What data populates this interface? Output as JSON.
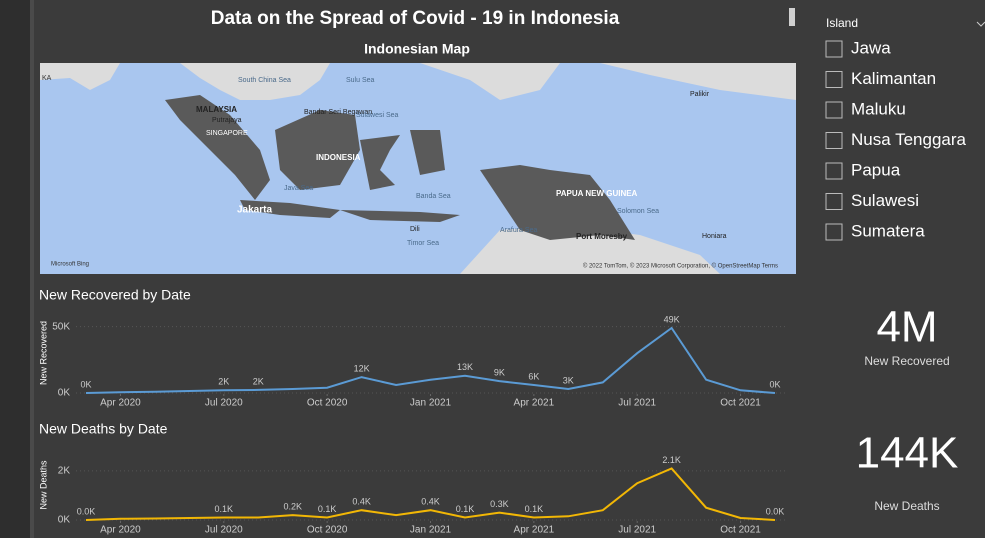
{
  "header": {
    "title": "Data on the Spread of Covid - 19 in Indonesia"
  },
  "map": {
    "title": "Indonesian Map",
    "labels": [
      "KA",
      "South China Sea",
      "Sulu Sea",
      "MALAYSIA",
      "Putrajaya",
      "SINGAPORE",
      "Bandar Seri Begawan",
      "Sulawesi Sea",
      "INDONESIA",
      "Java Sea",
      "Jakarta",
      "Banda Sea",
      "Dili",
      "Timor Sea",
      "Arafura Sea",
      "PAPUA NEW GUINEA",
      "Port Moresby",
      "Solomon Sea",
      "Palikir",
      "Honiara"
    ],
    "attribution": "Microsoft Bing",
    "copyright": "© 2022 TomTom, © 2023 Microsoft Corporation, © OpenStreetMap  Terms"
  },
  "slicer": {
    "title": "Island",
    "items": [
      "Jawa",
      "Kalimantan",
      "Maluku",
      "Nusa Tenggara",
      "Papua",
      "Sulawesi",
      "Sumatera"
    ]
  },
  "cards": [
    {
      "value": "4M",
      "label": "New Recovered"
    },
    {
      "value": "144K",
      "label": "New Deaths"
    }
  ],
  "chart_data": [
    {
      "type": "line",
      "title": "New Recovered by Date",
      "y_label": "New Recovered",
      "x": [
        "2020-03",
        "2020-04",
        "2020-05",
        "2020-06",
        "2020-07",
        "2020-08",
        "2020-09",
        "2020-10",
        "2020-11",
        "2020-12",
        "2021-01",
        "2021-02",
        "2021-03",
        "2021-04",
        "2021-05",
        "2021-06",
        "2021-07",
        "2021-08",
        "2021-09",
        "2021-10",
        "2021-11"
      ],
      "xlim": [
        "2020-03",
        "2021-11"
      ],
      "xticks": [
        {
          "value": "2020-04",
          "label": "Apr 2020"
        },
        {
          "value": "2020-07",
          "label": "Jul 2020"
        },
        {
          "value": "2020-10",
          "label": "Oct 2020"
        },
        {
          "value": "2021-01",
          "label": "Jan 2021"
        },
        {
          "value": "2021-04",
          "label": "Apr 2021"
        },
        {
          "value": "2021-07",
          "label": "Jul 2021"
        },
        {
          "value": "2021-10",
          "label": "Oct 2021"
        }
      ],
      "ylim": [
        0,
        55000
      ],
      "yticks": [
        {
          "value": 0,
          "label": "0K"
        },
        {
          "value": 50000,
          "label": "50K"
        }
      ],
      "series": [
        {
          "name": "New Recovered",
          "color": "#5b9bd5",
          "values": [
            0,
            500,
            1000,
            1500,
            2000,
            2300,
            3000,
            4000,
            12000,
            6000,
            10000,
            13000,
            9000,
            6000,
            3000,
            8000,
            30000,
            49000,
            10000,
            2000,
            0
          ],
          "value_labels": [
            "0K",
            null,
            null,
            null,
            "2K",
            "2K",
            null,
            null,
            "12K",
            null,
            null,
            "13K",
            "9K",
            "6K",
            "3K",
            null,
            null,
            "49K",
            null,
            null,
            "0K"
          ]
        }
      ]
    },
    {
      "type": "line",
      "title": "New Deaths by Date",
      "y_label": "New Deaths",
      "x": [
        "2020-03",
        "2020-04",
        "2020-05",
        "2020-06",
        "2020-07",
        "2020-08",
        "2020-09",
        "2020-10",
        "2020-11",
        "2020-12",
        "2021-01",
        "2021-02",
        "2021-03",
        "2021-04",
        "2021-05",
        "2021-06",
        "2021-07",
        "2021-08",
        "2021-09",
        "2021-10",
        "2021-11"
      ],
      "xlim": [
        "2020-03",
        "2021-11"
      ],
      "xticks": [
        {
          "value": "2020-04",
          "label": "Apr 2020"
        },
        {
          "value": "2020-07",
          "label": "Jul 2020"
        },
        {
          "value": "2020-10",
          "label": "Oct 2020"
        },
        {
          "value": "2021-01",
          "label": "Jan 2021"
        },
        {
          "value": "2021-04",
          "label": "Apr 2021"
        },
        {
          "value": "2021-07",
          "label": "Jul 2021"
        },
        {
          "value": "2021-10",
          "label": "Oct 2021"
        }
      ],
      "ylim": [
        0,
        2200
      ],
      "yticks": [
        {
          "value": 0,
          "label": "0K"
        },
        {
          "value": 2000,
          "label": "2K"
        }
      ],
      "series": [
        {
          "name": "New Deaths",
          "color": "#f2b705",
          "values": [
            0,
            50,
            60,
            80,
            100,
            100,
            200,
            100,
            400,
            200,
            400,
            100,
            300,
            100,
            150,
            400,
            1500,
            2100,
            500,
            80,
            0
          ],
          "value_labels": [
            "0.0K",
            null,
            null,
            null,
            "0.1K",
            null,
            "0.2K",
            "0.1K",
            "0.4K",
            null,
            "0.4K",
            "0.1K",
            "0.3K",
            "0.1K",
            null,
            null,
            null,
            "2.1K",
            null,
            null,
            "0.0K"
          ]
        }
      ]
    }
  ]
}
